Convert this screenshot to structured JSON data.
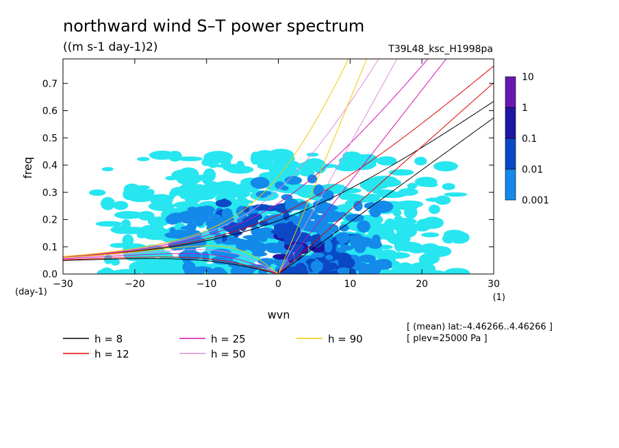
{
  "title": "northward wind S–T power spectrum",
  "units": "((m s-1 day-1)2)",
  "run_label": "T39L48_ksc_H1998pa",
  "x_axis": {
    "label": "wvn",
    "unit": "(1)",
    "ticks": [
      "−30",
      "−20",
      "−10",
      "0",
      "10",
      "20",
      "30"
    ]
  },
  "y_axis": {
    "label": "freq",
    "unit": "(day-1)",
    "ticks": [
      "0.0",
      "0.1",
      "0.2",
      "0.3",
      "0.4",
      "0.5",
      "0.6",
      "0.7"
    ]
  },
  "colorbar": {
    "labels": [
      "10",
      "1",
      "0.1",
      "0.01",
      "0.001"
    ],
    "colors": [
      "#6a16b0",
      "#1f16a4",
      "#0a48c6",
      "#138aea",
      "#27e6f0"
    ]
  },
  "legend": [
    {
      "label": "h = 8",
      "color": "#000000"
    },
    {
      "label": "h = 12",
      "color": "#e00000"
    },
    {
      "label": "h = 25",
      "color": "#d010b0"
    },
    {
      "label": "h = 50",
      "color": "#e08ad8"
    },
    {
      "label": "h = 90",
      "color": "#f0c800"
    }
  ],
  "annotations": [
    "[ (mean) lat:–4.46266..4.46266 ]",
    "[ plev=25000 Pa ]"
  ],
  "chart_data": {
    "type": "heatmap",
    "title": "northward wind S–T power spectrum",
    "xlabel": "wvn",
    "ylabel": "freq",
    "xlim": [
      -30,
      30
    ],
    "ylim": [
      0,
      0.79
    ],
    "contour_levels": [
      0.001,
      0.01,
      0.1,
      1,
      10
    ],
    "power_blobs": [
      {
        "x": 3,
        "y": 0.1,
        "level": 1
      },
      {
        "x": -3,
        "y": 0.2,
        "level": 0.1
      },
      {
        "x": 5,
        "y": 0.1,
        "level": 0.1
      },
      {
        "x": 6,
        "y": 0.03,
        "level": 0.1
      },
      {
        "x": -10,
        "y": 0.17,
        "level": 0.01
      },
      {
        "x": 2,
        "y": 0.28,
        "level": 0.01
      },
      {
        "x": 10,
        "y": 0.07,
        "level": 0.01
      }
    ],
    "dispersion_curves": [
      {
        "name": "h = 8",
        "equivalent_depth": 8
      },
      {
        "name": "h = 12",
        "equivalent_depth": 12
      },
      {
        "name": "h = 25",
        "equivalent_depth": 25
      },
      {
        "name": "h = 50",
        "equivalent_depth": 50
      },
      {
        "name": "h = 90",
        "equivalent_depth": 90
      }
    ]
  }
}
